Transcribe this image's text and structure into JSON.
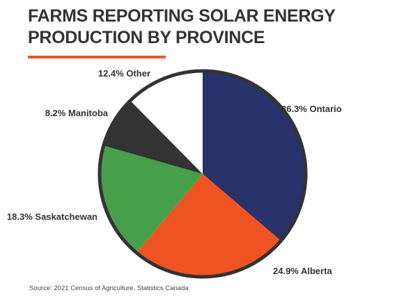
{
  "chart_data": {
    "type": "pie",
    "title_lines": [
      "FARMS REPORTING SOLAR ENERGY",
      "PRODUCTION BY PROVINCE"
    ],
    "unit": "%",
    "slices": [
      {
        "label": "Ontario",
        "value": 36.3,
        "text": "36.3% Ontario",
        "color": "#27326b"
      },
      {
        "label": "Alberta",
        "value": 24.9,
        "text": "24.9% Alberta",
        "color": "#ef5323"
      },
      {
        "label": "Saskatchewan",
        "value": 18.3,
        "text": "18.3% Saskatchewan",
        "color": "#45a049"
      },
      {
        "label": "Manitoba",
        "value": 8.2,
        "text": "8.2% Manitoba",
        "color": "#333333"
      },
      {
        "label": "Other",
        "value": 12.4,
        "text": "12.4% Other",
        "color": "#ffffff"
      }
    ],
    "start_angle_deg": 0,
    "direction": "clockwise",
    "outline_color": "#333333",
    "accent_color": "#ef5323",
    "source": "Source: 2021 Census of Agriculture, Statistics Canada"
  }
}
